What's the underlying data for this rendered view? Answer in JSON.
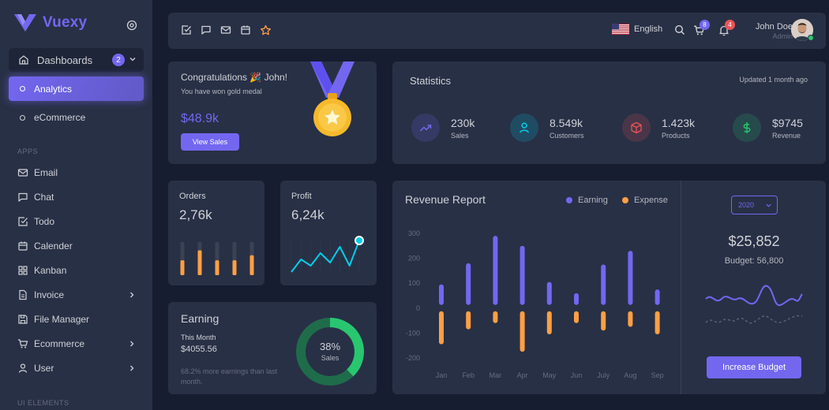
{
  "brand": {
    "name": "Vuexy",
    "color": "#7367f0"
  },
  "sidebar": {
    "dashboards": {
      "label": "Dashboards",
      "badge": "2"
    },
    "sub_items": [
      {
        "label": "Analytics",
        "active": true
      },
      {
        "label": "eCommerce",
        "active": false
      }
    ],
    "apps_header": "APPS",
    "items": [
      {
        "label": "Email",
        "icon": "mail-icon"
      },
      {
        "label": "Chat",
        "icon": "chat-icon"
      },
      {
        "label": "Todo",
        "icon": "check-square-icon"
      },
      {
        "label": "Calender",
        "icon": "calendar-icon"
      },
      {
        "label": "Kanban",
        "icon": "grid-icon"
      },
      {
        "label": "Invoice",
        "icon": "file-text-icon"
      },
      {
        "label": "File Manager",
        "icon": "save-icon"
      },
      {
        "label": "Ecommerce",
        "icon": "cart-icon"
      },
      {
        "label": "User",
        "icon": "user-icon"
      }
    ],
    "ui_header": "UI ELEMENTS"
  },
  "navbar": {
    "language": "English",
    "cart_count": "8",
    "notification_count": "4",
    "user_name": "John Doe",
    "user_role": "Admin"
  },
  "congrats": {
    "title": "Congratulations 🎉 John!",
    "subtitle": "You have won gold medal",
    "amount": "$48.9k",
    "button": "View Sales"
  },
  "statistics": {
    "title": "Statistics",
    "updated": "Updated 1 month ago",
    "items": [
      {
        "value": "230k",
        "label": "Sales",
        "icon": "trending-up-icon",
        "color": "#7367f0"
      },
      {
        "value": "8.549k",
        "label": "Customers",
        "icon": "user-icon",
        "color": "#00cfe8"
      },
      {
        "value": "1.423k",
        "label": "Products",
        "icon": "box-icon",
        "color": "#ea5455"
      },
      {
        "value": "$9745",
        "label": "Revenue",
        "icon": "dollar-icon",
        "color": "#28c76f"
      }
    ]
  },
  "orders": {
    "title": "Orders",
    "value": "2,76k"
  },
  "profit": {
    "title": "Profit",
    "value": "6,24k"
  },
  "earning": {
    "title": "Earning",
    "period": "This Month",
    "amount": "$4055.56",
    "note": "68.2% more earnings than last month.",
    "percent": "38%",
    "percent_label": "Sales"
  },
  "revenue": {
    "title": "Revenue Report",
    "legend_earning": "Earning",
    "legend_expense": "Expense",
    "year": "2020",
    "budget_amount": "$25,852",
    "budget_label": "Budget: 56,800",
    "button": "Increase Budget"
  },
  "chart_data": [
    {
      "type": "bar",
      "title": "Revenue Report",
      "categories": [
        "Jan",
        "Feb",
        "Mar",
        "Apr",
        "May",
        "Jun",
        "July",
        "Aug",
        "Sep"
      ],
      "series": [
        {
          "name": "Earning",
          "values": [
            95,
            180,
            290,
            250,
            105,
            60,
            175,
            230,
            75
          ],
          "color": "#7367f0"
        },
        {
          "name": "Expense",
          "values": [
            -145,
            -85,
            -60,
            -175,
            -105,
            -60,
            -90,
            -75,
            -105
          ],
          "color": "#ff9f43"
        }
      ],
      "yticks": [
        300,
        200,
        100,
        0,
        -100,
        -200
      ],
      "ylim": [
        -200,
        300
      ]
    },
    {
      "type": "bar",
      "title": "Orders",
      "values": [
        45,
        75,
        45,
        45,
        60
      ],
      "background": [
        100,
        100,
        100,
        100,
        100
      ],
      "color": "#ff9f43"
    },
    {
      "type": "line",
      "title": "Profit",
      "values": [
        0,
        20,
        10,
        30,
        15,
        40,
        10,
        50
      ],
      "color": "#00cfe8"
    },
    {
      "type": "pie",
      "title": "Earning",
      "values": [
        38,
        62
      ],
      "colors": [
        "#28c76f",
        "#1f6c4a"
      ]
    }
  ]
}
